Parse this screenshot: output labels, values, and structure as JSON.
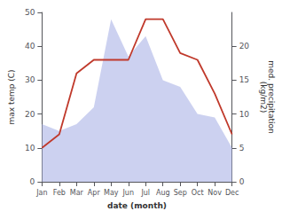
{
  "chart_data": {
    "type": "line",
    "xlabel": "date (month)",
    "ylabel": "max temp (C)",
    "y2label": "med. precipitation\n(kg/m2)",
    "categories": [
      "Jan",
      "Feb",
      "Mar",
      "Apr",
      "May",
      "Jun",
      "Jul",
      "Aug",
      "Sep",
      "Oct",
      "Nov",
      "Dec"
    ],
    "series": [
      {
        "type": "area",
        "color": "#b0b8e8",
        "values": [
          17,
          15,
          17,
          22,
          48,
          37,
          43,
          30,
          28,
          20,
          19,
          10
        ]
      },
      {
        "type": "line",
        "color": "#c0392b",
        "axis": "y2",
        "values": [
          5,
          7,
          16,
          18,
          18,
          18,
          24,
          24,
          19,
          18,
          13,
          7
        ]
      }
    ],
    "ylim": [
      0,
      50
    ],
    "yticks": [
      0,
      10,
      20,
      30,
      40,
      50
    ],
    "y2lim": [
      0,
      25
    ],
    "y2ticks": [
      0,
      5,
      10,
      15,
      20
    ],
    "grid": false
  }
}
